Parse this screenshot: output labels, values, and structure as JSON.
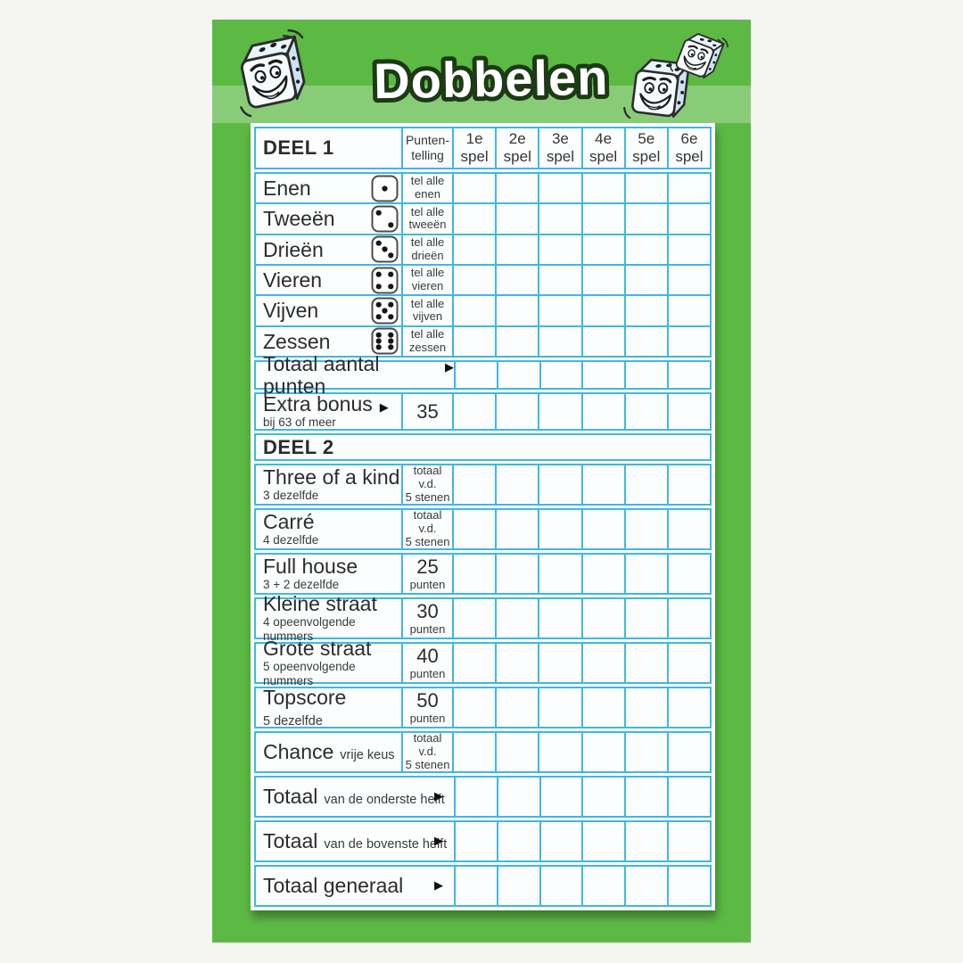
{
  "title": "Dobbelen",
  "colors": {
    "page_bg": "#f5f5f3",
    "card_green": "#5cb944",
    "band_overlay": "rgba(255,255,255,0.28)",
    "border_cyan": "#3fb8e1",
    "cell_bg": "#fbfdfe",
    "ink": "#2c2c2c"
  },
  "header": {
    "deel1": "DEEL 1",
    "score_line1": "Punten-",
    "score_line2": "telling",
    "games": [
      {
        "num": "1e",
        "word": "spel"
      },
      {
        "num": "2e",
        "word": "spel"
      },
      {
        "num": "3e",
        "word": "spel"
      },
      {
        "num": "4e",
        "word": "spel"
      },
      {
        "num": "5e",
        "word": "spel"
      },
      {
        "num": "6e",
        "word": "spel"
      }
    ]
  },
  "upper_rows": [
    {
      "label": "Enen",
      "die": "1",
      "score_line1": "tel alle",
      "score_line2": "enen"
    },
    {
      "label": "Tweeën",
      "die": "2",
      "score_line1": "tel alle",
      "score_line2": "tweeën"
    },
    {
      "label": "Drieën",
      "die": "3",
      "score_line1": "tel alle",
      "score_line2": "drieën"
    },
    {
      "label": "Vieren",
      "die": "4",
      "score_line1": "tel alle",
      "score_line2": "vieren"
    },
    {
      "label": "Vijven",
      "die": "5",
      "score_line1": "tel alle",
      "score_line2": "vijven"
    },
    {
      "label": "Zessen",
      "die": "6",
      "score_line1": "tel alle",
      "score_line2": "zessen"
    }
  ],
  "total_upper": {
    "label": "Totaal aantal punten",
    "arrow": "▶"
  },
  "bonus": {
    "label": "Extra bonus",
    "arrow": "▶",
    "sub": "bij 63 of meer",
    "value": "35"
  },
  "deel2": "DEEL 2",
  "lower_rows": [
    {
      "label": "Three of a kind",
      "sub": "3 dezelfde",
      "score_line1": "totaal v.d.",
      "score_line2": "5 stenen"
    },
    {
      "label": "Carré",
      "sub": "4 dezelfde",
      "score_line1": "totaal v.d.",
      "score_line2": "5 stenen"
    },
    {
      "label": "Full house",
      "sub": "3 + 2 dezelfde",
      "score_line1": "25",
      "score_line2": "punten"
    },
    {
      "label": "Kleine straat",
      "sub": "4 opeenvolgende nummers",
      "score_line1": "30",
      "score_line2": "punten"
    },
    {
      "label": "Grote straat",
      "sub": "5 opeenvolgende nummers",
      "score_line1": "40",
      "score_line2": "punten"
    },
    {
      "label": "Topscore",
      "sub_inline": "5 dezelfde",
      "score_line1": "50",
      "score_line2": "punten"
    },
    {
      "label": "Chance",
      "sub_inline": "vrije keus",
      "score_line1": "totaal v.d.",
      "score_line2": "5 stenen"
    }
  ],
  "totals": [
    {
      "label": "Totaal",
      "sub_inline": "van de onderste helft",
      "arrow": "▶"
    },
    {
      "label": "Totaal",
      "sub_inline": "van de bovenste helft",
      "arrow": "▶"
    },
    {
      "label": "Totaal generaal",
      "sub_inline": "",
      "arrow": "▶"
    }
  ]
}
